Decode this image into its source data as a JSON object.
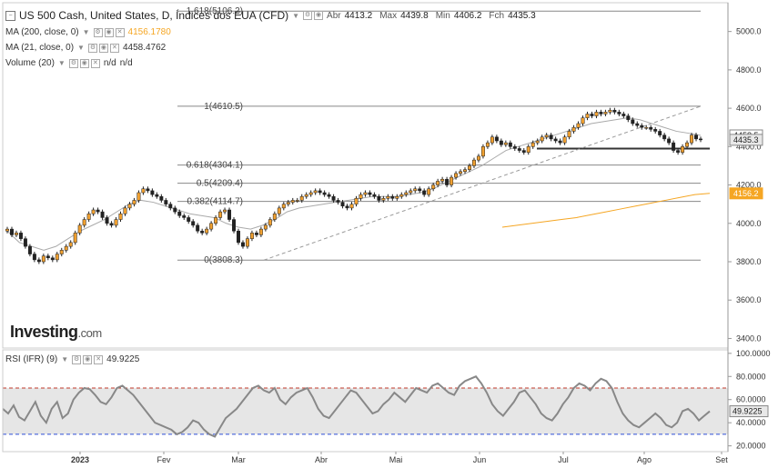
{
  "header": {
    "title": "US 500 Cash, United States, D, Índices dos EUA (CFD)",
    "open_label": "Abr",
    "open": "4413.2",
    "max_label": "Max",
    "max": "4439.8",
    "min_label": "Min",
    "min": "4406.2",
    "close_label": "Fch",
    "close": "4435.3"
  },
  "indicators": {
    "ma200": {
      "label": "MA (200, close, 0)",
      "value": "4156.1780",
      "color": "#f5a623"
    },
    "ma21": {
      "label": "MA (21, close, 0)",
      "value": "4458.4762",
      "color": "#aaaaaa"
    },
    "volume": {
      "label": "Volume (20)",
      "v1": "n/d",
      "v2": "n/d"
    },
    "rsi": {
      "label": "RSI (IFR) (9)",
      "value": "49.9225"
    }
  },
  "logo": {
    "brand": "Investing",
    "suffix": ".com"
  },
  "colors": {
    "up": "#f0a030",
    "down": "#222222",
    "rsi_line": "#888888",
    "overbought": "#c0392b",
    "oversold": "#2f4fd8",
    "ma200": "#f5a623",
    "ma21": "#aaaaaa"
  },
  "chart_data": [
    {
      "type": "candlestick",
      "title": "US 500 Cash, United States, D",
      "x_ticks": [
        "2023",
        "Fev",
        "Mar",
        "Abr",
        "Mai",
        "Jun",
        "Jul",
        "Ago",
        "Set"
      ],
      "ylim": [
        3350,
        5150
      ],
      "y_ticks": [
        "5000.0",
        "4800.0",
        "4600.0",
        "4400.0",
        "4200.0",
        "4000.0",
        "3800.0",
        "3600.0",
        "3400.0"
      ],
      "price_tags": [
        {
          "label": "4458.5",
          "value": 4458.5,
          "style": "ma21"
        },
        {
          "label": "4435.3",
          "value": 4435.3,
          "style": "close"
        },
        {
          "label": "4156.2",
          "value": 4156.2,
          "style": "ma200"
        }
      ],
      "fibonacci": [
        {
          "label": "1.618(5106.2)",
          "value": 5106.2
        },
        {
          "label": "1(4610.5)",
          "value": 4610.5
        },
        {
          "label": "0.618(4304.1)",
          "value": 4304.1
        },
        {
          "label": "0.5(4209.4)",
          "value": 4209.4
        },
        {
          "label": "0.382(4114.7)",
          "value": 4114.7
        },
        {
          "label": "0(3808.3)",
          "value": 3808.3
        }
      ],
      "support_line": 4390,
      "close_series": [
        3970,
        3940,
        3950,
        3920,
        3880,
        3840,
        3810,
        3800,
        3830,
        3820,
        3810,
        3840,
        3860,
        3880,
        3900,
        3950,
        3990,
        4020,
        4050,
        4070,
        4060,
        4030,
        4000,
        3990,
        4020,
        4050,
        4080,
        4100,
        4120,
        4160,
        4180,
        4170,
        4150,
        4140,
        4120,
        4100,
        4080,
        4060,
        4040,
        4030,
        4010,
        3990,
        3960,
        3950,
        3970,
        4000,
        4030,
        4060,
        4070,
        4020,
        3960,
        3900,
        3880,
        3920,
        3950,
        3940,
        3970,
        3990,
        4020,
        4050,
        4080,
        4100,
        4110,
        4120,
        4120,
        4140,
        4150,
        4160,
        4170,
        4160,
        4150,
        4140,
        4120,
        4110,
        4090,
        4080,
        4100,
        4130,
        4150,
        4160,
        4150,
        4140,
        4120,
        4130,
        4140,
        4130,
        4140,
        4150,
        4160,
        4170,
        4180,
        4170,
        4150,
        4180,
        4200,
        4220,
        4230,
        4200,
        4240,
        4260,
        4270,
        4280,
        4300,
        4330,
        4350,
        4400,
        4420,
        4450,
        4430,
        4410,
        4420,
        4400,
        4390,
        4380,
        4370,
        4400,
        4420,
        4430,
        4450,
        4460,
        4440,
        4430,
        4420,
        4450,
        4480,
        4500,
        4520,
        4550,
        4570,
        4560,
        4580,
        4570,
        4580,
        4590,
        4580,
        4570,
        4560,
        4540,
        4520,
        4510,
        4500,
        4500,
        4490,
        4480,
        4460,
        4440,
        4420,
        4380,
        4370,
        4400,
        4420,
        4460,
        4440,
        4435.3
      ],
      "ma200_series": [
        3980,
        3990,
        4000,
        4010,
        4020,
        4030,
        4045,
        4060,
        4075,
        4090,
        4105,
        4120,
        4135,
        4150,
        4156.2
      ],
      "ma21_series": [
        3960,
        3900,
        3880,
        3860,
        3880,
        3920,
        3960,
        3990,
        4020,
        4060,
        4100,
        4120,
        4110,
        4090,
        4070,
        4050,
        4040,
        4030,
        4000,
        3980,
        3970,
        3990,
        4020,
        4060,
        4080,
        4090,
        4100,
        4110,
        4120,
        4130,
        4140,
        4140,
        4140,
        4150,
        4160,
        4180,
        4210,
        4240,
        4270,
        4300,
        4340,
        4380,
        4400,
        4420,
        4440,
        4460,
        4480,
        4500,
        4520,
        4530,
        4540,
        4550,
        4540,
        4520,
        4500,
        4480,
        4470,
        4458.5
      ],
      "trend_line": [
        [
          3808.3,
          4610.5
        ]
      ]
    },
    {
      "type": "line",
      "title": "RSI (IFR) (9)",
      "ylim": [
        15,
        103
      ],
      "y_ticks": [
        "100.0000",
        "80.0000",
        "60.0000",
        "40.0000",
        "20.0000"
      ],
      "overbought": 70,
      "oversold": 30,
      "value_tag": "49.9225",
      "values": [
        52,
        48,
        55,
        45,
        42,
        50,
        58,
        46,
        40,
        52,
        58,
        44,
        48,
        60,
        66,
        70,
        69,
        64,
        58,
        56,
        62,
        70,
        72,
        68,
        64,
        58,
        52,
        46,
        40,
        38,
        36,
        34,
        30,
        32,
        36,
        42,
        40,
        34,
        30,
        28,
        36,
        44,
        48,
        52,
        58,
        64,
        70,
        72,
        68,
        66,
        70,
        60,
        56,
        62,
        66,
        68,
        70,
        62,
        52,
        46,
        44,
        50,
        56,
        62,
        68,
        66,
        60,
        54,
        48,
        50,
        56,
        60,
        66,
        62,
        58,
        64,
        70,
        68,
        66,
        72,
        74,
        70,
        66,
        64,
        72,
        76,
        78,
        80,
        74,
        66,
        56,
        50,
        46,
        52,
        58,
        66,
        68,
        62,
        56,
        48,
        44,
        42,
        48,
        56,
        62,
        70,
        74,
        72,
        68,
        74,
        78,
        76,
        70,
        58,
        48,
        42,
        38,
        36,
        40,
        44,
        48,
        44,
        38,
        36,
        40,
        50,
        52,
        48,
        42,
        46,
        49.9225
      ]
    }
  ]
}
